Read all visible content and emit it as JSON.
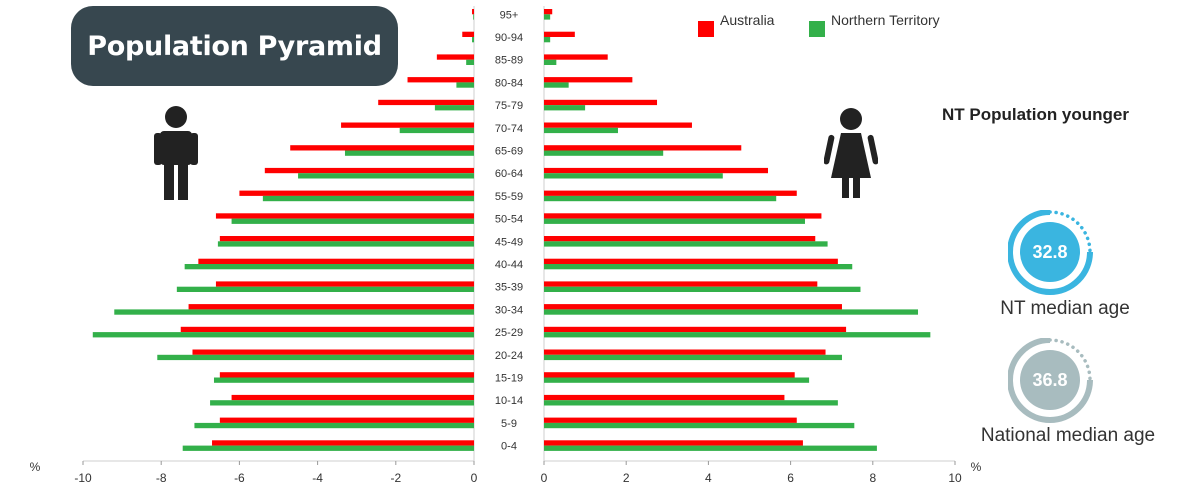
{
  "title": "Population Pyramid",
  "legend": [
    {
      "name": "Australia",
      "color": "#ff0000"
    },
    {
      "name": "Northern Territory",
      "color": "#33b04a"
    }
  ],
  "headline": "NT Population younger",
  "stats": {
    "nt_median": {
      "value": "32.8",
      "label": "NT median age",
      "color": "#3ab5e0"
    },
    "national_median": {
      "value": "36.8",
      "label": "National median age",
      "color": "#a8bcbf"
    }
  },
  "icons": {
    "left": "male-person-icon",
    "right": "female-person-icon"
  },
  "chart_data": {
    "type": "bar",
    "orientation": "horizontal-pyramid",
    "unit_label": "%",
    "categories": [
      "95+",
      "90-94",
      "85-89",
      "80-84",
      "75-79",
      "70-74",
      "65-69",
      "60-64",
      "55-59",
      "50-54",
      "45-49",
      "40-44",
      "35-39",
      "30-34",
      "25-29",
      "20-24",
      "15-19",
      "10-14",
      "5-9",
      "0-4"
    ],
    "left": {
      "xlim": [
        -10,
        0
      ],
      "ticks": [
        "-10",
        "-8",
        "-6",
        "-4",
        "-2",
        "0"
      ],
      "series": [
        {
          "name": "Australia",
          "values": [
            -0.05,
            -0.3,
            -0.95,
            -1.7,
            -2.45,
            -3.4,
            -4.7,
            -5.35,
            -6.0,
            -6.6,
            -6.5,
            -7.05,
            -6.6,
            -7.3,
            -7.5,
            -7.2,
            -6.5,
            -6.2,
            -6.5,
            -6.7
          ]
        },
        {
          "name": "Northern Territory",
          "values": [
            -0.02,
            -0.05,
            -0.2,
            -0.45,
            -1.0,
            -1.9,
            -3.3,
            -4.5,
            -5.4,
            -6.2,
            -6.55,
            -7.4,
            -7.6,
            -9.2,
            -9.75,
            -8.1,
            -6.65,
            -6.75,
            -7.15,
            -7.45
          ]
        }
      ]
    },
    "right": {
      "xlim": [
        0,
        10
      ],
      "ticks": [
        "0",
        "2",
        "4",
        "6",
        "8",
        "10"
      ],
      "series": [
        {
          "name": "Australia",
          "values": [
            0.2,
            0.75,
            1.55,
            2.15,
            2.75,
            3.6,
            4.8,
            5.45,
            6.15,
            6.75,
            6.6,
            7.15,
            6.65,
            7.25,
            7.35,
            6.85,
            6.1,
            5.85,
            6.15,
            6.3
          ]
        },
        {
          "name": "Northern Territory",
          "values": [
            0.15,
            0.15,
            0.3,
            0.6,
            1.0,
            1.8,
            2.9,
            4.35,
            5.65,
            6.35,
            6.9,
            7.5,
            7.7,
            9.1,
            9.4,
            7.25,
            6.45,
            7.15,
            7.55,
            8.1
          ]
        }
      ]
    }
  }
}
